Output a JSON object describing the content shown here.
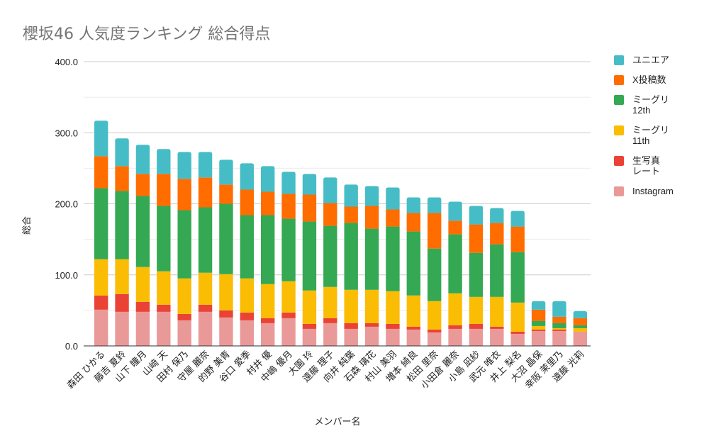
{
  "chart_data": {
    "type": "bar",
    "stacked": true,
    "title": "櫻坂46 人気度ランキング 総合得点",
    "xlabel": "メンバー名",
    "ylabel": "総合",
    "ylim": [
      0,
      400
    ],
    "yticks": [
      "0.0",
      "100.0",
      "200.0",
      "300.0",
      "400.0"
    ],
    "ytick_values": [
      0,
      100,
      200,
      300,
      400
    ],
    "grid": true,
    "legend_position": "right",
    "categories": [
      "森田 ひかる",
      "藤吉 夏鈴",
      "山下 瞳月",
      "山﨑 天",
      "田村 保乃",
      "守屋 麗奈",
      "的野 美青",
      "谷口 愛季",
      "村井 優",
      "中嶋 優月",
      "大園 玲",
      "遠藤 理子",
      "向井 純葉",
      "石森 璃花",
      "村山 美羽",
      "増本 綺良",
      "松田 里奈",
      "小田倉 麗奈",
      "小島 凪紗",
      "武元 唯衣",
      "井上 梨名",
      "大沼 晶保",
      "幸阪 茉里乃",
      "遠藤 光莉"
    ],
    "series": [
      {
        "name": "Instagram",
        "color": "#ea9999",
        "values": [
          51,
          48,
          48,
          48,
          36,
          48,
          40,
          36,
          32,
          39,
          24,
          32,
          24,
          27,
          24,
          23,
          19,
          24,
          24,
          24,
          17,
          21,
          21,
          20
        ]
      },
      {
        "name": "生写真\nレート",
        "color": "#ea4335",
        "values": [
          20,
          25,
          14,
          10,
          9,
          10,
          10,
          11,
          7,
          8,
          7,
          7,
          8,
          5,
          7,
          4,
          4,
          5,
          7,
          3,
          3,
          2,
          2,
          0
        ]
      },
      {
        "name": "ミーグリ\n11th",
        "color": "#fbbc04",
        "values": [
          51,
          49,
          49,
          47,
          50,
          45,
          51,
          48,
          48,
          44,
          47,
          44,
          47,
          47,
          46,
          44,
          40,
          45,
          38,
          42,
          41,
          5,
          2,
          5
        ]
      },
      {
        "name": "ミーグリ\n12th",
        "color": "#34a853",
        "values": [
          100,
          96,
          100,
          92,
          96,
          92,
          99,
          89,
          97,
          88,
          97,
          86,
          94,
          86,
          91,
          90,
          74,
          83,
          62,
          74,
          71,
          7,
          7,
          4
        ]
      },
      {
        "name": "X投稿数",
        "color": "#ff6d01",
        "values": [
          45,
          35,
          31,
          45,
          44,
          42,
          27,
          36,
          33,
          35,
          38,
          32,
          23,
          32,
          24,
          26,
          50,
          19,
          40,
          30,
          36,
          16,
          9,
          10
        ]
      },
      {
        "name": "ユニエア",
        "color": "#46bdc6",
        "values": [
          50,
          39,
          41,
          35,
          38,
          36,
          35,
          37,
          36,
          31,
          29,
          36,
          31,
          28,
          31,
          22,
          22,
          27,
          26,
          21,
          22,
          12,
          22,
          10
        ]
      }
    ]
  }
}
